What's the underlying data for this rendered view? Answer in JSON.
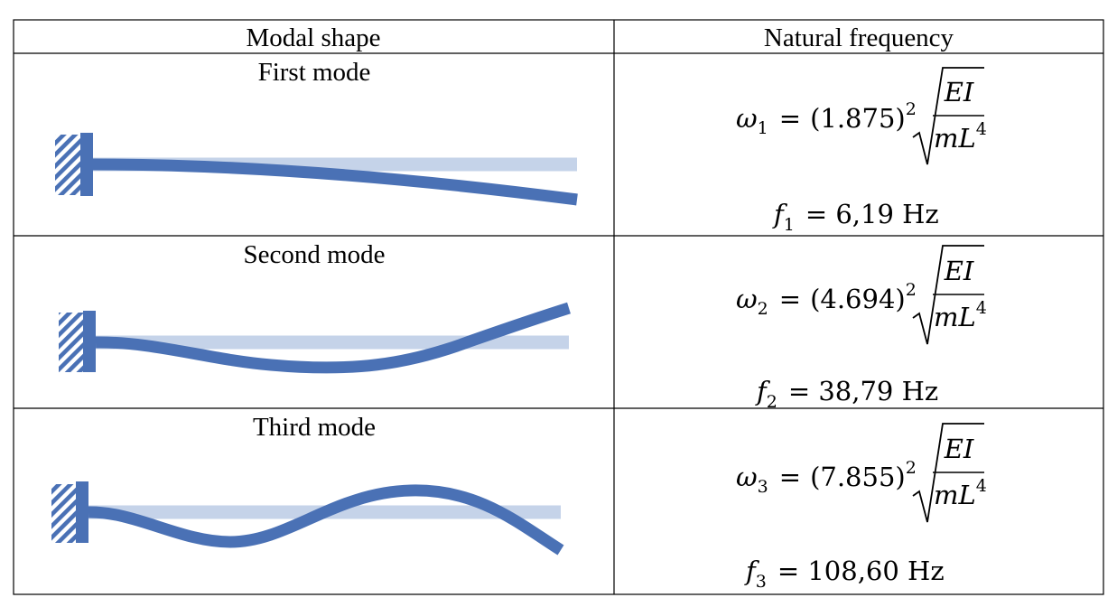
{
  "table": {
    "headers": {
      "modal_shape": "Modal shape",
      "natural_frequency": "Natural frequency"
    },
    "rows": [
      {
        "title": "First mode",
        "omega_symbol": "ω",
        "index": "1",
        "coefficient": "(1.875)",
        "exponent": "2",
        "numerator": "EI",
        "denominator_base": "mL",
        "denominator_exp": "4",
        "f_symbol": "f",
        "f_value": "= 6,19 Hz"
      },
      {
        "title": "Second mode",
        "omega_symbol": "ω",
        "index": "2",
        "coefficient": "(4.694)",
        "exponent": "2",
        "numerator": "EI",
        "denominator_base": "mL",
        "denominator_exp": "4",
        "f_symbol": "f",
        "f_value": "= 38,79 Hz"
      },
      {
        "title": "Third mode",
        "omega_symbol": "ω",
        "index": "3",
        "coefficient": "(7.855)",
        "exponent": "2",
        "numerator": "EI",
        "denominator_base": "mL",
        "denominator_exp": "4",
        "f_symbol": "f",
        "f_value": "= 108,60 Hz"
      }
    ]
  },
  "colors": {
    "beam": "#4a71b5",
    "rest_beam": "#c5d3e9",
    "grid": "#000000"
  },
  "icons": [
    "fixed-support-hatch-icon"
  ]
}
